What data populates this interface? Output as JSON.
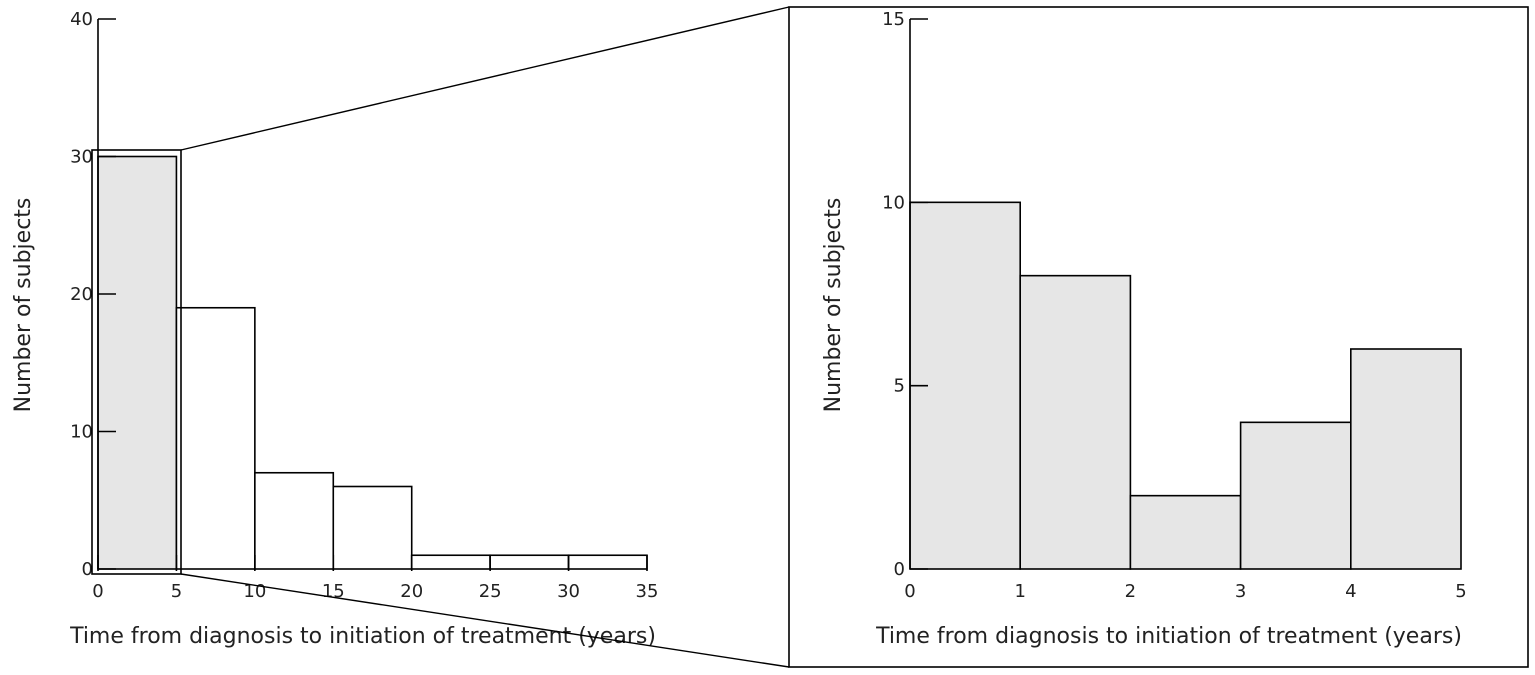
{
  "colors": {
    "highlight_fill": "#e6e6e6",
    "plain_fill": "#ffffff",
    "stroke": "#000000"
  },
  "chart_data": [
    {
      "type": "bar",
      "histogram": true,
      "bin_edges": [
        0,
        5,
        10,
        15,
        20,
        25,
        30,
        35
      ],
      "values": [
        30,
        19,
        7,
        6,
        1,
        1,
        1
      ],
      "highlighted_bins": [
        0
      ],
      "xlabel": "Time from diagnosis to initiation of treatment (years)",
      "ylabel": "Number of subjects",
      "xlim": [
        0,
        35
      ],
      "ylim": [
        0,
        40
      ],
      "xticks": [
        0,
        5,
        10,
        15,
        20,
        25,
        30,
        35
      ],
      "yticks": [
        0,
        10,
        20,
        30,
        40
      ],
      "grid": false
    },
    {
      "type": "bar",
      "histogram": true,
      "bin_edges": [
        0,
        1,
        2,
        3,
        4,
        5
      ],
      "values": [
        10,
        8,
        2,
        4,
        6
      ],
      "xlabel": "Time from diagnosis to initiation of treatment (years)",
      "ylabel": "Number of subjects",
      "xlim": [
        0,
        5
      ],
      "ylim": [
        0,
        15
      ],
      "xticks": [
        0,
        1,
        2,
        3,
        4,
        5
      ],
      "yticks": [
        0,
        5,
        10,
        15
      ],
      "grid": false,
      "zoom_of": "bins 0-5 of left chart"
    }
  ]
}
